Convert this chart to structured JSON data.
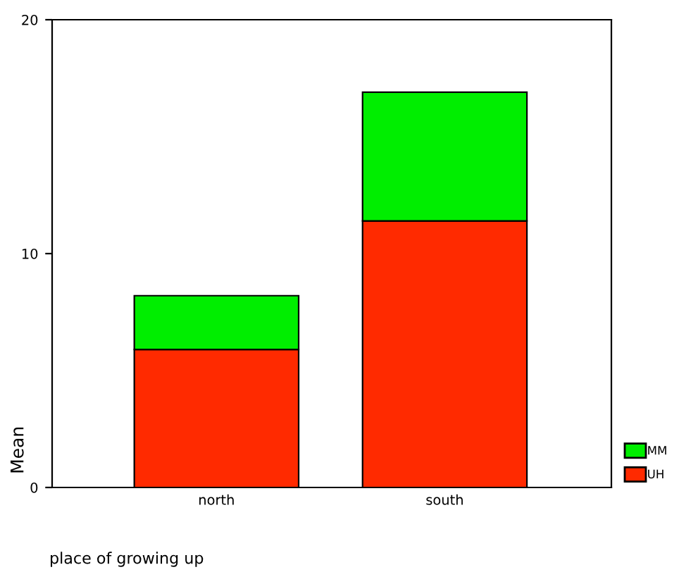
{
  "chart_data": {
    "type": "bar",
    "stacked": true,
    "xlabel": "place of growing up",
    "ylabel": "Mean",
    "categories": [
      "north",
      "south"
    ],
    "series": [
      {
        "name": "UH",
        "color": "#ff2a00",
        "values": [
          5.9,
          11.4
        ]
      },
      {
        "name": "MM",
        "color": "#00ee00",
        "values": [
          2.3,
          5.5
        ]
      }
    ],
    "ylim": [
      0,
      20
    ],
    "yticks": [
      0,
      10,
      20
    ],
    "legend": "bottom right",
    "grid": false
  }
}
